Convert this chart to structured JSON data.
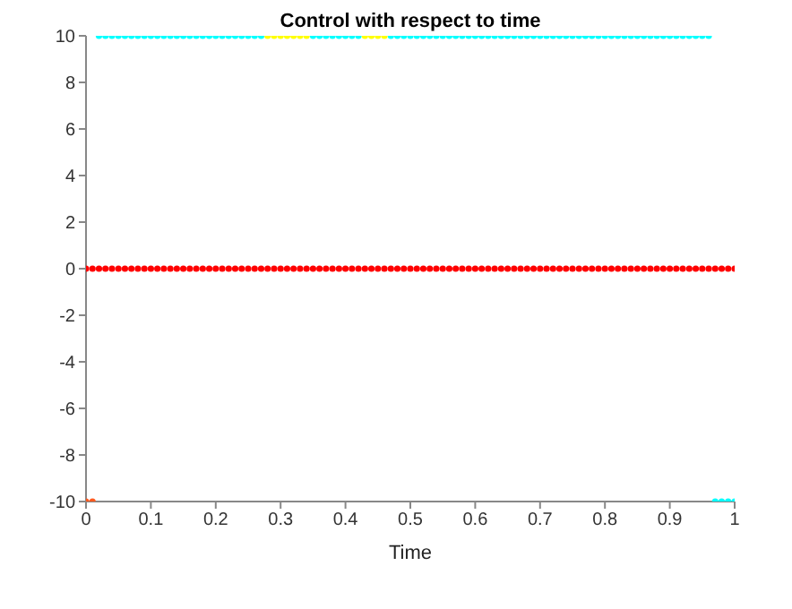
{
  "chart_data": {
    "type": "scatter",
    "title": "Control with respect to time",
    "xlabel": "Time",
    "xlim": [
      0,
      1
    ],
    "xticks": [
      0,
      0.1,
      0.2,
      0.3,
      0.4,
      0.5,
      0.6,
      0.7,
      0.8,
      0.9,
      1
    ],
    "ylim": [
      -10,
      10
    ],
    "yticks": [
      -10,
      -8,
      -6,
      -4,
      -2,
      0,
      2,
      4,
      6,
      8,
      10
    ],
    "grid": false,
    "legend": false,
    "marker": "circle",
    "series": [
      {
        "color": "#ff0000",
        "x": [
          0,
          0.01,
          0.02,
          0.03,
          0.04,
          0.05,
          0.06,
          0.07,
          0.08,
          0.09,
          0.1,
          0.11,
          0.12,
          0.13,
          0.14,
          0.15,
          0.16,
          0.17,
          0.18,
          0.19,
          0.2,
          0.21,
          0.22,
          0.23,
          0.24,
          0.25,
          0.26,
          0.27,
          0.28,
          0.29,
          0.3,
          0.31,
          0.32,
          0.33,
          0.34,
          0.35,
          0.36,
          0.37,
          0.38,
          0.39,
          0.4,
          0.41,
          0.42,
          0.43,
          0.44,
          0.45,
          0.46,
          0.47,
          0.48,
          0.49,
          0.5,
          0.51,
          0.52,
          0.53,
          0.54,
          0.55,
          0.56,
          0.57,
          0.58,
          0.59,
          0.6,
          0.61,
          0.62,
          0.63,
          0.64,
          0.65,
          0.66,
          0.67,
          0.68,
          0.69,
          0.7,
          0.71,
          0.72,
          0.73,
          0.74,
          0.75,
          0.76,
          0.77,
          0.78,
          0.79,
          0.8,
          0.81,
          0.82,
          0.83,
          0.84,
          0.85,
          0.86,
          0.87,
          0.88,
          0.89,
          0.9,
          0.91,
          0.92,
          0.93,
          0.94,
          0.95,
          0.96,
          0.97,
          0.98,
          0.99,
          1
        ],
        "values": [
          0,
          0,
          0,
          0,
          0,
          0,
          0,
          0,
          0,
          0,
          0,
          0,
          0,
          0,
          0,
          0,
          0,
          0,
          0,
          0,
          0,
          0,
          0,
          0,
          0,
          0,
          0,
          0,
          0,
          0,
          0,
          0,
          0,
          0,
          0,
          0,
          0,
          0,
          0,
          0,
          0,
          0,
          0,
          0,
          0,
          0,
          0,
          0,
          0,
          0,
          0,
          0,
          0,
          0,
          0,
          0,
          0,
          0,
          0,
          0,
          0,
          0,
          0,
          0,
          0,
          0,
          0,
          0,
          0,
          0,
          0,
          0,
          0,
          0,
          0,
          0,
          0,
          0,
          0,
          0,
          0,
          0,
          0,
          0,
          0,
          0,
          0,
          0,
          0,
          0,
          0,
          0,
          0,
          0,
          0,
          0,
          0,
          0,
          0,
          0,
          0
        ]
      },
      {
        "color": "#00ffff",
        "x": [
          0.02,
          0.03,
          0.04,
          0.05,
          0.06,
          0.07,
          0.08,
          0.09,
          0.1,
          0.11,
          0.12,
          0.13,
          0.14,
          0.15,
          0.16,
          0.17,
          0.18,
          0.19,
          0.2,
          0.21,
          0.22,
          0.23,
          0.24,
          0.25,
          0.26,
          0.27,
          0.35,
          0.36,
          0.37,
          0.38,
          0.39,
          0.4,
          0.41,
          0.42,
          0.47,
          0.48,
          0.49,
          0.5,
          0.51,
          0.52,
          0.53,
          0.54,
          0.55,
          0.56,
          0.57,
          0.58,
          0.59,
          0.6,
          0.61,
          0.62,
          0.63,
          0.64,
          0.65,
          0.66,
          0.67,
          0.68,
          0.69,
          0.7,
          0.71,
          0.72,
          0.73,
          0.74,
          0.75,
          0.76,
          0.77,
          0.78,
          0.79,
          0.8,
          0.81,
          0.82,
          0.83,
          0.84,
          0.85,
          0.86,
          0.87,
          0.88,
          0.89,
          0.9,
          0.91,
          0.92,
          0.93,
          0.94,
          0.95,
          0.96,
          0.97,
          0.98,
          0.99,
          1
        ],
        "values": [
          10,
          10,
          10,
          10,
          10,
          10,
          10,
          10,
          10,
          10,
          10,
          10,
          10,
          10,
          10,
          10,
          10,
          10,
          10,
          10,
          10,
          10,
          10,
          10,
          10,
          10,
          10,
          10,
          10,
          10,
          10,
          10,
          10,
          10,
          10,
          10,
          10,
          10,
          10,
          10,
          10,
          10,
          10,
          10,
          10,
          10,
          10,
          10,
          10,
          10,
          10,
          10,
          10,
          10,
          10,
          10,
          10,
          10,
          10,
          10,
          10,
          10,
          10,
          10,
          10,
          10,
          10,
          10,
          10,
          10,
          10,
          10,
          10,
          10,
          10,
          10,
          10,
          10,
          10,
          10,
          10,
          10,
          10,
          10,
          -10,
          -10,
          -10,
          -10
        ]
      },
      {
        "color": "#ffff00",
        "x": [
          0.28,
          0.29,
          0.3,
          0.31,
          0.32,
          0.33,
          0.34,
          0.43,
          0.44,
          0.45,
          0.46
        ],
        "values": [
          10,
          10,
          10,
          10,
          10,
          10,
          10,
          10,
          10,
          10,
          10
        ]
      },
      {
        "color": "#ff5a1f",
        "x": [
          0,
          0.01
        ],
        "values": [
          -10,
          -10
        ]
      }
    ]
  }
}
